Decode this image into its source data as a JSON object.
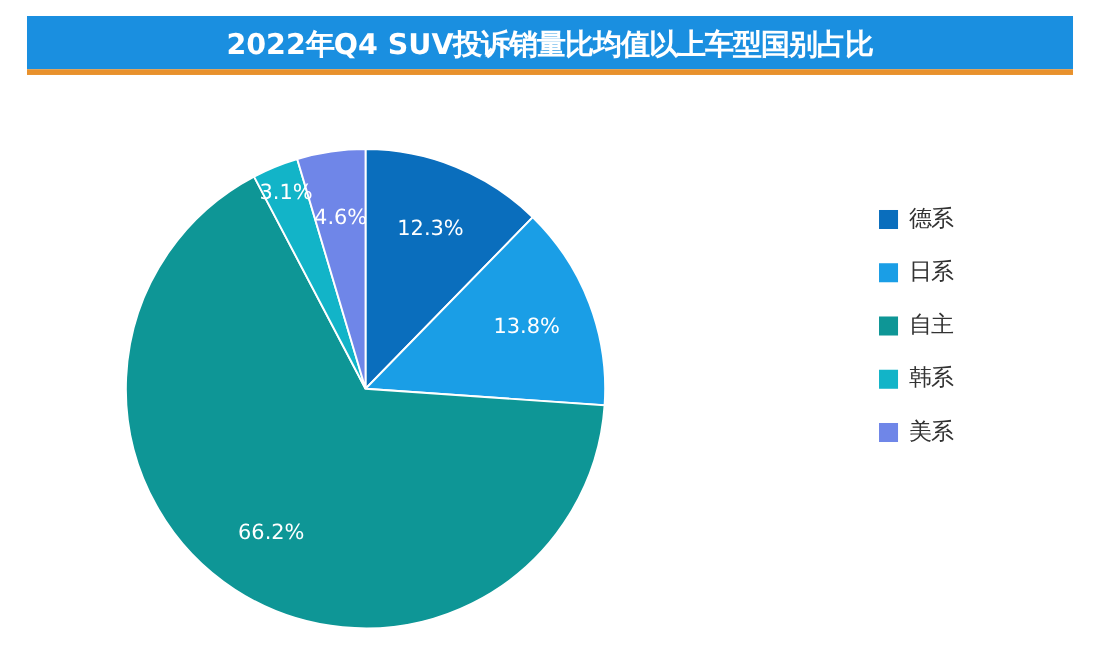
{
  "chart_data": {
    "type": "pie",
    "title": "2022年Q4 SUV投诉销量比均值以上车型国别占比",
    "categories": [
      "德系",
      "日系",
      "自主",
      "韩系",
      "美系"
    ],
    "values": [
      12.3,
      13.8,
      66.2,
      3.1,
      4.6
    ],
    "colors": [
      "#0a6ebd",
      "#1a9ee6",
      "#0e9696",
      "#12b4c8",
      "#6f86e8"
    ],
    "value_labels": [
      "12.3%",
      "13.8%",
      "66.2%",
      "3.1%",
      "4.6%"
    ],
    "legend": "right"
  }
}
